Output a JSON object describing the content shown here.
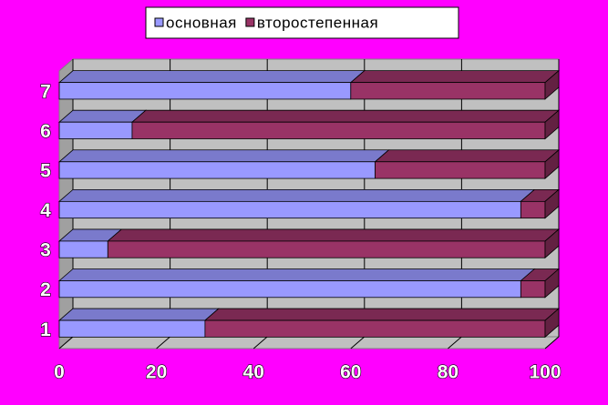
{
  "chart_data": {
    "type": "bar3d-stacked-horizontal",
    "categories": [
      "1",
      "2",
      "3",
      "4",
      "5",
      "6",
      "7"
    ],
    "series": [
      {
        "name": "основная",
        "color": "#9999ff",
        "values": [
          30,
          95,
          10,
          95,
          65,
          15,
          60
        ]
      },
      {
        "name": "второстепенная",
        "color": "#993366",
        "values": [
          70,
          5,
          90,
          5,
          35,
          85,
          40
        ]
      }
    ],
    "xlim": [
      0,
      100
    ],
    "xticks": [
      0,
      20,
      40,
      60,
      80,
      100
    ],
    "grid": true,
    "legend": "top"
  }
}
